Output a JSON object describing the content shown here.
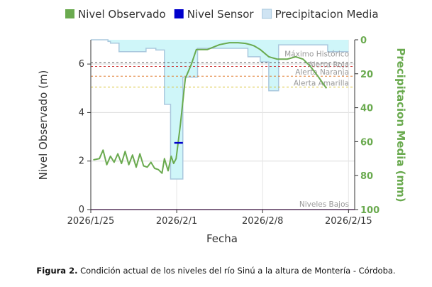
{
  "chart_data": {
    "type": "line",
    "legend": {
      "placement": "top",
      "entries": [
        {
          "label": "Nivel Observado",
          "color": "#6aaa4f",
          "kind": "line"
        },
        {
          "label": "Nivel Sensor",
          "color": "#0000cc",
          "kind": "line"
        },
        {
          "label": "Precipitacion Media",
          "color": "#cfe4f3",
          "kind": "area"
        }
      ]
    },
    "xlabel": "Fecha",
    "ylabel": "Nivel Observado (m)",
    "y2label": "Precipitacion Media (mm)",
    "x_ticks": [
      "2026/1/25",
      "2026/2/1",
      "2026/2/8",
      "2026/2/15"
    ],
    "x_tick_days": [
      0,
      7,
      14,
      21
    ],
    "y_ticks": [
      "0",
      "2",
      "4",
      "6"
    ],
    "y2_ticks": [
      "0",
      "20",
      "40",
      "60",
      "80",
      "100"
    ],
    "x_range": [
      0,
      21.5
    ],
    "y_range": [
      0,
      7
    ],
    "y2_range": [
      0,
      100
    ],
    "y2_inverted": true,
    "grid": true,
    "colors": {
      "observado": "#6aaa4f",
      "sensor": "#0000cc",
      "precip_fill": "#cfe4f3",
      "precip_stroke": "#aac8de",
      "precip_top": "#cff6f9",
      "niveles_bajos": "#9933aa"
    },
    "thresholds": [
      {
        "name": "Máximo Histórico",
        "value": 6.05,
        "color": "#555555"
      },
      {
        "name": "Alerta Roja",
        "value": 5.9,
        "color": "#cc3333"
      },
      {
        "name": "Alerta Naranja",
        "value": 5.5,
        "color": "#e07b2e"
      },
      {
        "name": "Alerta Amarilla",
        "value": 5.05,
        "color": "#d9c233"
      },
      {
        "name": "Niveles Bajos",
        "value": 0.0,
        "color": "#9933aa"
      }
    ],
    "series": [
      {
        "name": "Nivel Observado",
        "axis": "left",
        "x": [
          0.2,
          0.7,
          1.0,
          1.3,
          1.6,
          1.9,
          2.2,
          2.5,
          2.8,
          3.1,
          3.4,
          3.7,
          4.0,
          4.3,
          4.6,
          4.9,
          5.2,
          5.5,
          5.8,
          6.0,
          6.3,
          6.55,
          6.75,
          6.95,
          7.3,
          7.7,
          8.2,
          8.6,
          9.5,
          10.5,
          11.3,
          12.0,
          12.6,
          13.0,
          13.3,
          13.8,
          14.5,
          15.2,
          16.0,
          16.7,
          17.3,
          17.9,
          18.5,
          19.2
        ],
        "y": [
          2.05,
          2.1,
          2.45,
          1.85,
          2.2,
          1.95,
          2.3,
          1.9,
          2.4,
          1.85,
          2.25,
          1.75,
          2.3,
          1.8,
          1.75,
          1.95,
          1.7,
          1.65,
          1.5,
          2.1,
          1.6,
          2.2,
          1.9,
          2.1,
          3.5,
          5.4,
          6.0,
          6.6,
          6.6,
          6.8,
          6.88,
          6.88,
          6.85,
          6.8,
          6.75,
          6.6,
          6.3,
          6.2,
          6.2,
          6.3,
          6.2,
          5.9,
          5.5,
          5.0
        ]
      },
      {
        "name": "Nivel Sensor",
        "axis": "left",
        "x": [
          6.8,
          7.5
        ],
        "y": [
          2.75,
          2.75
        ]
      },
      {
        "name": "Precipitacion Media",
        "axis": "right",
        "type": "step-area",
        "x": [
          0.0,
          1.4,
          1.6,
          2.3,
          3.0,
          4.5,
          5.3,
          6.0,
          6.5,
          6.75,
          7.5,
          8.7,
          12.8,
          13.8,
          14.5,
          15.3,
          16.3,
          17.3,
          18.5,
          19.3,
          21.0
        ],
        "y": [
          0,
          1,
          2,
          7,
          7,
          5,
          6,
          38,
          82,
          82,
          22,
          5,
          10,
          13,
          30,
          3,
          3,
          3,
          3,
          7,
          7
        ]
      }
    ]
  },
  "caption": {
    "label": "Figura 2.",
    "text": "Condición actual de los niveles del río Sinú a la altura de Montería - Córdoba."
  }
}
